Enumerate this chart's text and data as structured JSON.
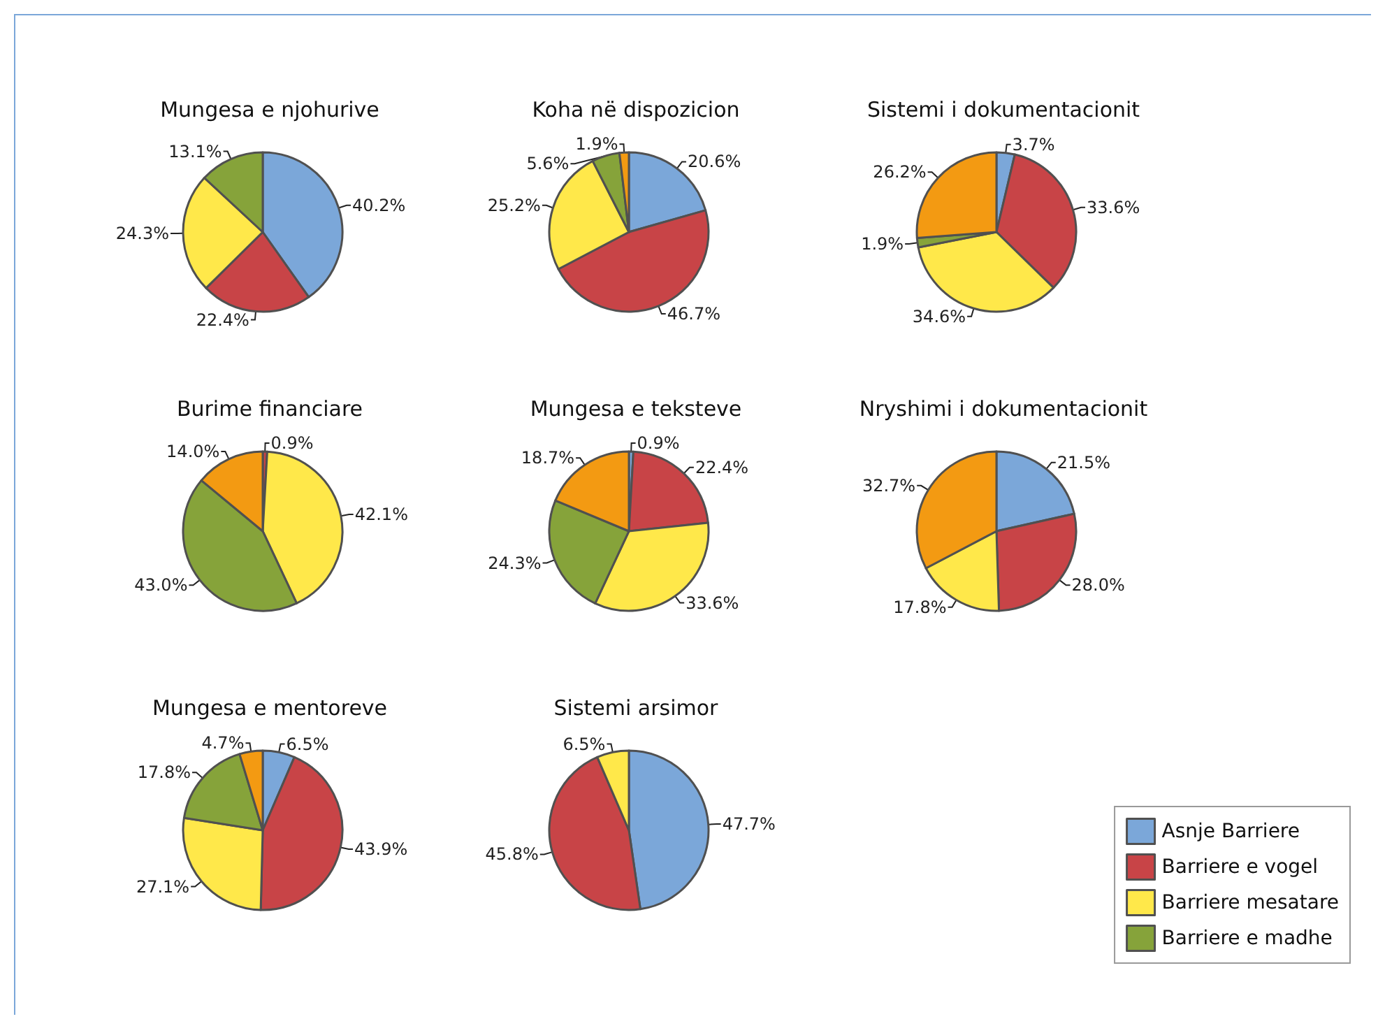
{
  "chart_data": {
    "type": "pie",
    "categories": [
      "Asnje Barriere",
      "Barriere e vogel",
      "Barriere mesatare",
      "Barriere e madhe",
      null
    ],
    "colors": [
      "#7ba7d9",
      "#c84447",
      "#ffe84a",
      "#86a33a",
      "#f39a12"
    ],
    "legend": "bottom right",
    "series": [
      {
        "name": "Mungesa e njohurive",
        "values": [
          40.2,
          22.4,
          24.3,
          13.1,
          null
        ],
        "value_labels": [
          "40.2%",
          "22.4%",
          "24.3%",
          "13.1%",
          null
        ]
      },
      {
        "name": "Koha në dispozicion",
        "values": [
          20.6,
          46.7,
          25.2,
          5.6,
          1.9
        ],
        "value_labels": [
          "20.6%",
          "46.7%",
          "25.2%",
          "5.6%",
          "1.9%"
        ]
      },
      {
        "name": "Sistemi i dokumentacionit",
        "values": [
          3.7,
          33.6,
          34.6,
          1.9,
          26.2
        ],
        "value_labels": [
          "3.7%",
          "33.6%",
          "34.6%",
          "1.9%",
          "26.2%"
        ]
      },
      {
        "name": "Burime financiare",
        "values": [
          null,
          0.9,
          42.1,
          43.0,
          14.0
        ],
        "value_labels": [
          null,
          "0.9%",
          "42.1%",
          "43.0%",
          "14.0%"
        ]
      },
      {
        "name": "Mungesa e teksteve",
        "values": [
          0.9,
          22.4,
          33.6,
          24.3,
          18.7
        ],
        "value_labels": [
          "0.9%",
          "22.4%",
          "33.6%",
          "24.3%",
          "18.7%"
        ]
      },
      {
        "name": "Nryshimi i dokumentacionit",
        "values": [
          21.5,
          28.0,
          17.8,
          null,
          32.7
        ],
        "value_labels": [
          "21.5%",
          "28.0%",
          "17.8%",
          null,
          "32.7%"
        ]
      },
      {
        "name": "Mungesa e mentoreve",
        "values": [
          6.5,
          43.9,
          27.1,
          17.8,
          4.7
        ],
        "value_labels": [
          "6.5%",
          "43.9%",
          "27.1%",
          "17.8%",
          "4.7%"
        ]
      },
      {
        "name": "Sistemi arsimor",
        "values": [
          47.7,
          45.8,
          6.5,
          null,
          null
        ],
        "value_labels": [
          "47.7%",
          "45.8%",
          "6.5%",
          null,
          null
        ]
      }
    ]
  }
}
